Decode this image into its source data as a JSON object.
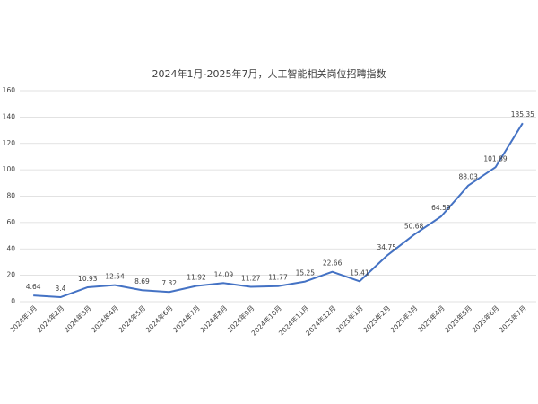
{
  "chart_data": {
    "type": "line",
    "title": "2024年1月-2025年7月，人工智能相关岗位招聘指数",
    "categories": [
      "2024年1月",
      "2024年2月",
      "2024年3月",
      "2024年4月",
      "2024年5月",
      "2024年6月",
      "2024年7月",
      "2024年8月",
      "2024年9月",
      "2024年10月",
      "2024年11月",
      "2024年12月",
      "2025年1月",
      "2025年2月",
      "2025年3月",
      "2025年4月",
      "2025年5月",
      "2025年6月",
      "2025年7月"
    ],
    "series": [
      {
        "name": "人工智能相关岗位招聘指数",
        "color": "#4472c4",
        "values": [
          4.64,
          3.4,
          10.93,
          12.54,
          8.69,
          7.32,
          11.92,
          14.09,
          11.27,
          11.77,
          15.25,
          22.66,
          15.41,
          34.75,
          50.68,
          64.59,
          88.03,
          101.89,
          135.35
        ]
      }
    ],
    "ylim": [
      0,
      160
    ],
    "yticks": [
      0,
      20,
      40,
      60,
      80,
      100,
      120,
      140,
      160
    ],
    "grid": true
  }
}
